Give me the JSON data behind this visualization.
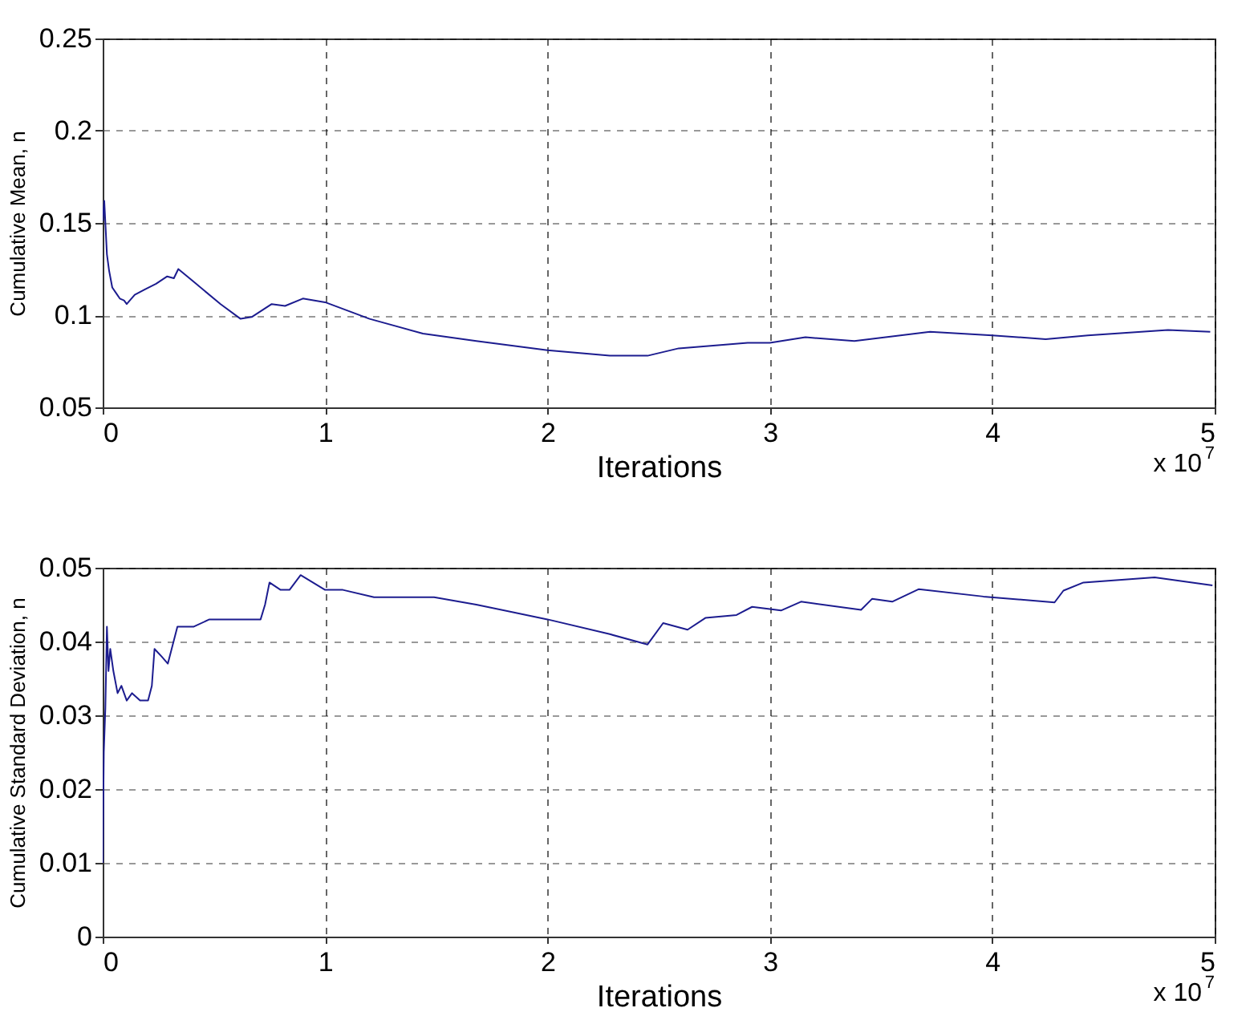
{
  "chart_data": [
    {
      "type": "line",
      "xlabel": "Iterations",
      "ylabel": "Cumulative Mean, n",
      "annotations": [
        "x 10$^{7}$"
      ],
      "xlim": [
        0,
        5
      ],
      "xticks": [
        0,
        1,
        2,
        3,
        4,
        5
      ],
      "ylim": [
        0.05,
        0.25
      ],
      "yticks": [
        0.05,
        0.1,
        0.15,
        0.2,
        0.25
      ],
      "grid": true,
      "line_style": "solid",
      "marker": "none",
      "series": [
        {
          "color": "#1c1c8f",
          "x": [
            0,
            0.007,
            0.012,
            0.019,
            0.029,
            0.043,
            0.06,
            0.077,
            0.096,
            0.108,
            0.144,
            0.19,
            0.24,
            0.29,
            0.32,
            0.34,
            0.41,
            0.53,
            0.62,
            0.67,
            0.76,
            0.82,
            0.9,
            1.0,
            1.2,
            1.44,
            1.68,
            2.0,
            2.28,
            2.45,
            2.59,
            2.9,
            3.0,
            3.16,
            3.38,
            3.72,
            4.0,
            4.24,
            4.43,
            4.79,
            4.98
          ],
          "values": [
            0.151,
            0.162,
            0.15,
            0.133,
            0.124,
            0.115,
            0.112,
            0.109,
            0.108,
            0.106,
            0.111,
            0.114,
            0.117,
            0.121,
            0.12,
            0.125,
            0.118,
            0.106,
            0.098,
            0.099,
            0.106,
            0.105,
            0.109,
            0.107,
            0.098,
            0.09,
            0.086,
            0.081,
            0.078,
            0.078,
            0.082,
            0.085,
            0.085,
            0.088,
            0.086,
            0.091,
            0.089,
            0.087,
            0.089,
            0.092,
            0.091
          ]
        }
      ]
    },
    {
      "type": "line",
      "xlabel": "Iterations",
      "ylabel": "Cumulative Standard Deviation, n",
      "annotations": [
        "x 10$^{7}$"
      ],
      "xlim": [
        0,
        5
      ],
      "xticks": [
        0,
        1,
        2,
        3,
        4,
        5
      ],
      "ylim": [
        0,
        0.05
      ],
      "yticks": [
        0,
        0.01,
        0.02,
        0.03,
        0.04,
        0.05
      ],
      "grid": true,
      "line_style": "solid",
      "marker": "none",
      "series": [
        {
          "color": "#1c1c8f",
          "x": [
            0,
            0.005,
            0.012,
            0.019,
            0.026,
            0.034,
            0.048,
            0.067,
            0.084,
            0.108,
            0.132,
            0.168,
            0.204,
            0.221,
            0.233,
            0.264,
            0.293,
            0.336,
            0.408,
            0.48,
            0.6,
            0.67,
            0.71,
            0.73,
            0.75,
            0.8,
            0.84,
            0.89,
            1.0,
            1.08,
            1.22,
            1.32,
            1.49,
            1.68,
            2.0,
            2.28,
            2.45,
            2.52,
            2.63,
            2.71,
            2.85,
            2.92,
            3.05,
            3.14,
            3.41,
            3.46,
            3.55,
            3.67,
            3.96,
            4.28,
            4.32,
            4.41,
            4.73,
            4.99
          ],
          "values": [
            0.01,
            0.025,
            0.031,
            0.042,
            0.036,
            0.039,
            0.036,
            0.033,
            0.034,
            0.032,
            0.033,
            0.032,
            0.032,
            0.034,
            0.039,
            0.038,
            0.037,
            0.042,
            0.042,
            0.043,
            0.043,
            0.043,
            0.043,
            0.045,
            0.048,
            0.047,
            0.047,
            0.049,
            0.047,
            0.047,
            0.046,
            0.046,
            0.046,
            0.045,
            0.043,
            0.041,
            0.0396,
            0.0425,
            0.0416,
            0.0432,
            0.0436,
            0.0447,
            0.0442,
            0.0454,
            0.0443,
            0.0458,
            0.0454,
            0.0471,
            0.0461,
            0.0453,
            0.0469,
            0.048,
            0.0487,
            0.0476
          ]
        }
      ]
    }
  ]
}
